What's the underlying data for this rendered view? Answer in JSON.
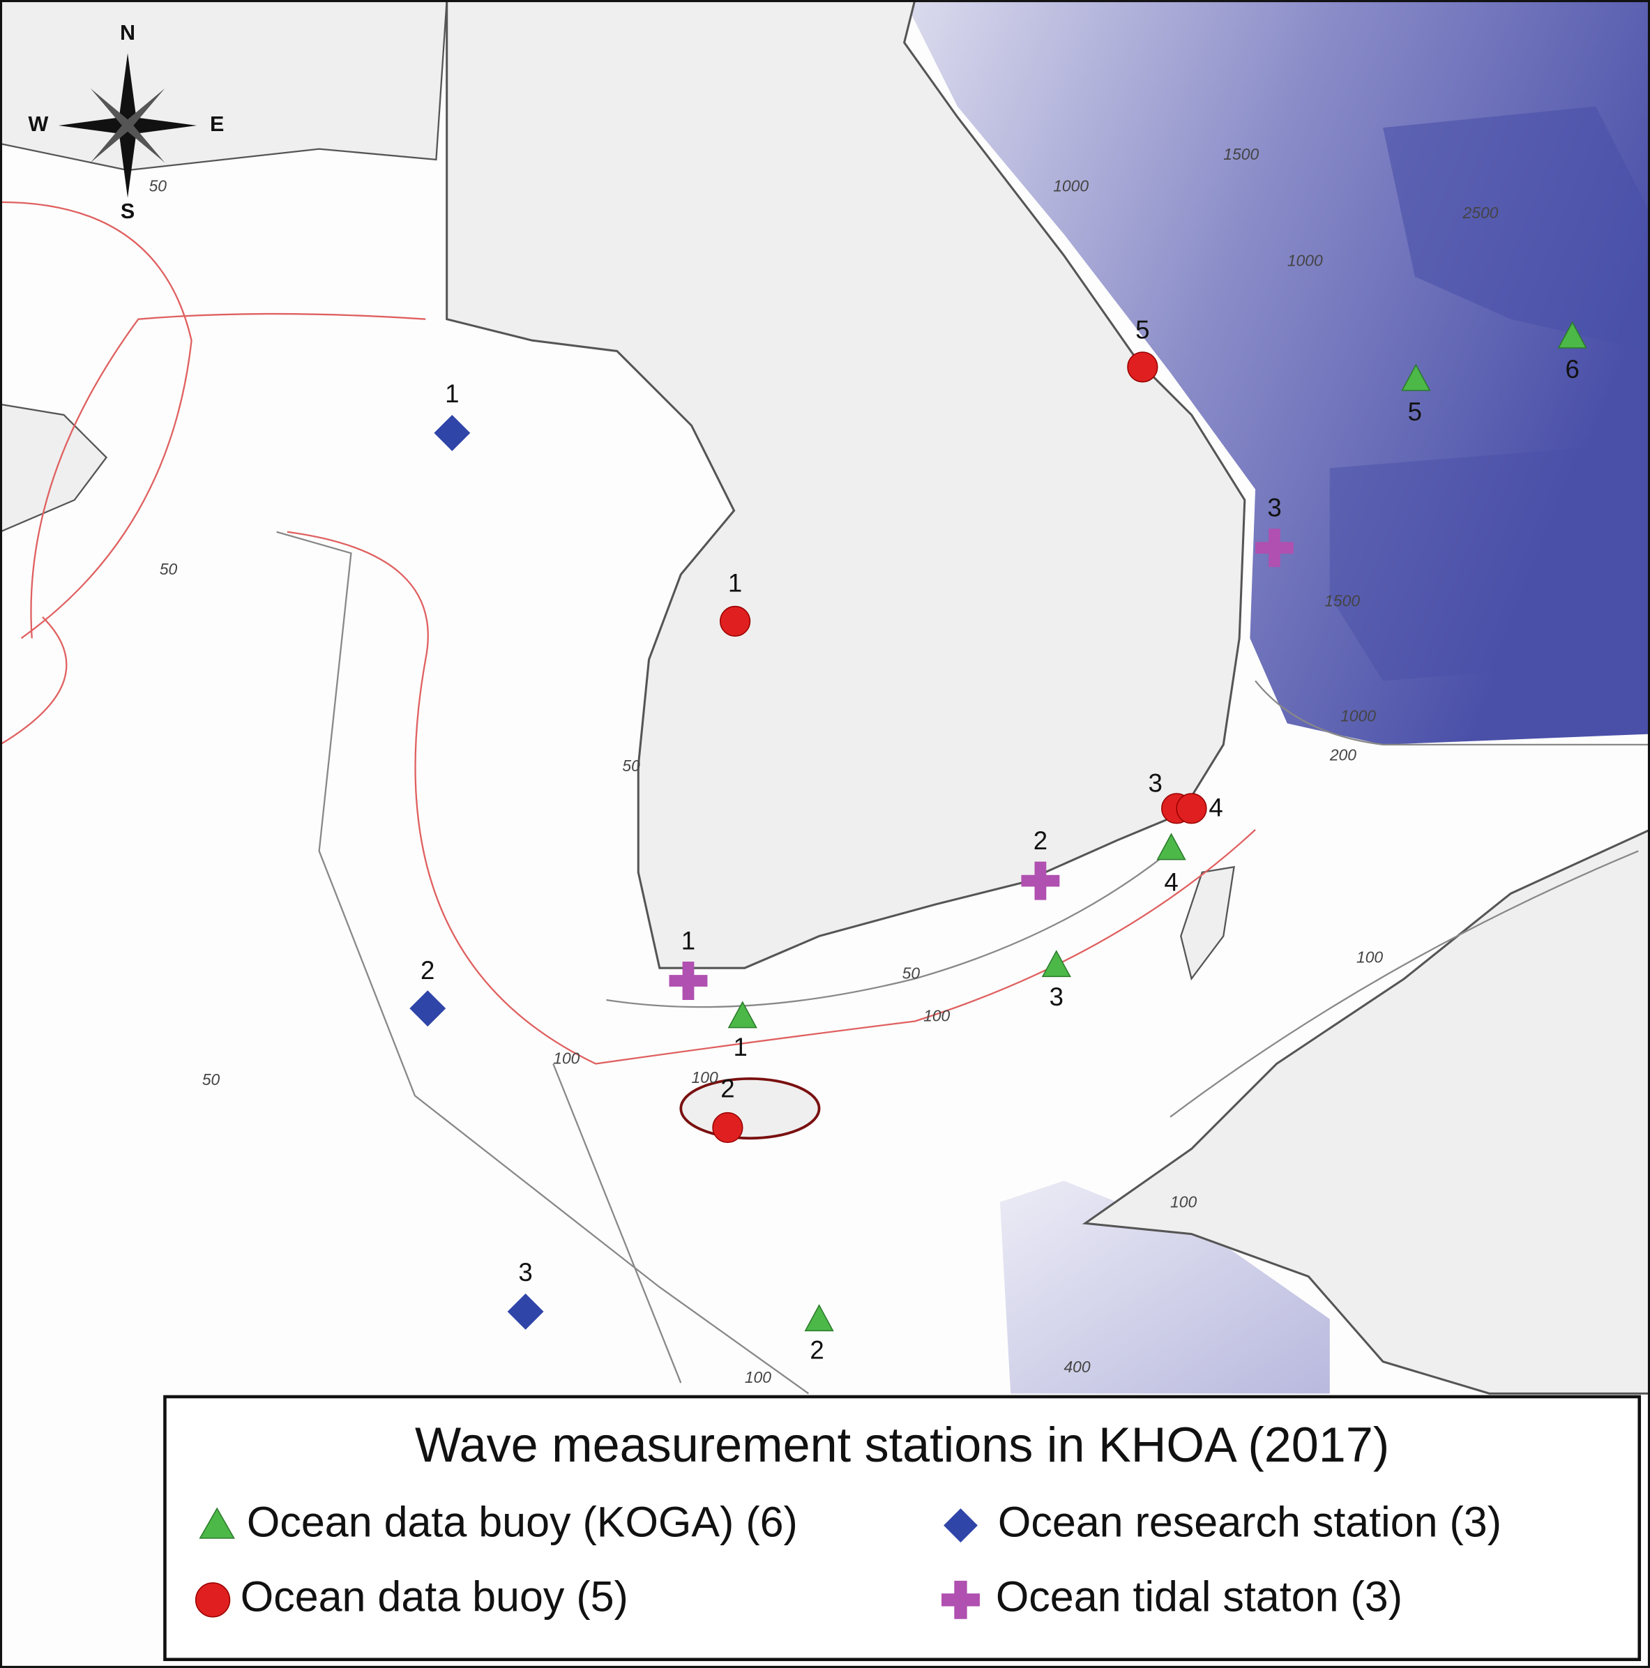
{
  "title": "Wave measurement stations in KHOA (2017)",
  "compass": {
    "n": "N",
    "s": "S",
    "e": "E",
    "w": "W"
  },
  "legend": [
    {
      "label": "Ocean data buoy (KOGA) (6)"
    },
    {
      "label": "Ocean research station (3)"
    },
    {
      "label": "Ocean data buoy (5)"
    },
    {
      "label": "Ocean tidal staton (3)"
    }
  ],
  "stations": {
    "koga": [
      "1",
      "2",
      "3",
      "4",
      "5",
      "6"
    ],
    "buoy": [
      "1",
      "2",
      "3",
      "4",
      "5"
    ],
    "research": [
      "1",
      "2",
      "3"
    ],
    "tidal": [
      "1",
      "2",
      "3"
    ]
  },
  "contour_labels": [
    "50",
    "50",
    "50",
    "50",
    "50",
    "100",
    "100",
    "100",
    "100",
    "100",
    "100",
    "1000",
    "1500",
    "2500",
    "1000",
    "1500",
    "1000",
    "200",
    "400"
  ]
}
